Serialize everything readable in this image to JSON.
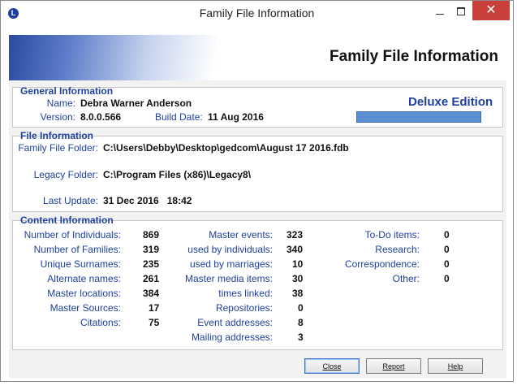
{
  "window": {
    "title": "Family File Information",
    "app_icon": "L",
    "close_glyph": "✕"
  },
  "banner": {
    "title": "Family File Information"
  },
  "general": {
    "heading": "General Information",
    "name_label": "Name:",
    "name_value": "Debra Warner Anderson",
    "version_label": "Version:",
    "version_value": "8.0.0.566",
    "build_label": "Build Date:",
    "build_value": "11 Aug 2016",
    "edition": "Deluxe Edition"
  },
  "file": {
    "heading": "File Information",
    "folder_label": "Family File Folder:",
    "folder_value": "C:\\Users\\Debby\\Desktop\\gedcom\\August 17 2016.fdb",
    "legacy_label": "Legacy Folder:",
    "legacy_value": "C:\\Program Files (x86)\\Legacy8\\",
    "update_label": "Last Update:",
    "update_value": "31 Dec 2016   18:42"
  },
  "content": {
    "heading": "Content Information",
    "col1": [
      {
        "label": "Number of Individuals:",
        "value": "869"
      },
      {
        "label": "Number of Families:",
        "value": "319"
      },
      {
        "label": "Unique Surnames:",
        "value": "235"
      },
      {
        "label": "Alternate names:",
        "value": "261"
      },
      {
        "label": "Master locations:",
        "value": "384"
      },
      {
        "label": "Master Sources:",
        "value": "17"
      },
      {
        "label": "Citations:",
        "value": "75"
      }
    ],
    "col2": [
      {
        "label": "Master events:",
        "value": "323"
      },
      {
        "label": "used by individuals:",
        "value": "340"
      },
      {
        "label": "used by marriages:",
        "value": "10"
      },
      {
        "label": "Master media items:",
        "value": "30"
      },
      {
        "label": "times linked:",
        "value": "38"
      },
      {
        "label": "Repositories:",
        "value": "0"
      },
      {
        "label": "Event addresses:",
        "value": "8"
      },
      {
        "label": "Mailing addresses:",
        "value": "3"
      }
    ],
    "col3": [
      {
        "label": "To-Do items:",
        "value": "0"
      },
      {
        "label": "Research:",
        "value": "0"
      },
      {
        "label": "Correspondence:",
        "value": "0"
      },
      {
        "label": "Other:",
        "value": "0"
      }
    ]
  },
  "buttons": {
    "close": "Close",
    "report": "Report",
    "help": "Help"
  },
  "colors": {
    "accent": "#1f3f9e",
    "close_button": "#c9403a",
    "edition_bar": "#5b8fd0"
  }
}
